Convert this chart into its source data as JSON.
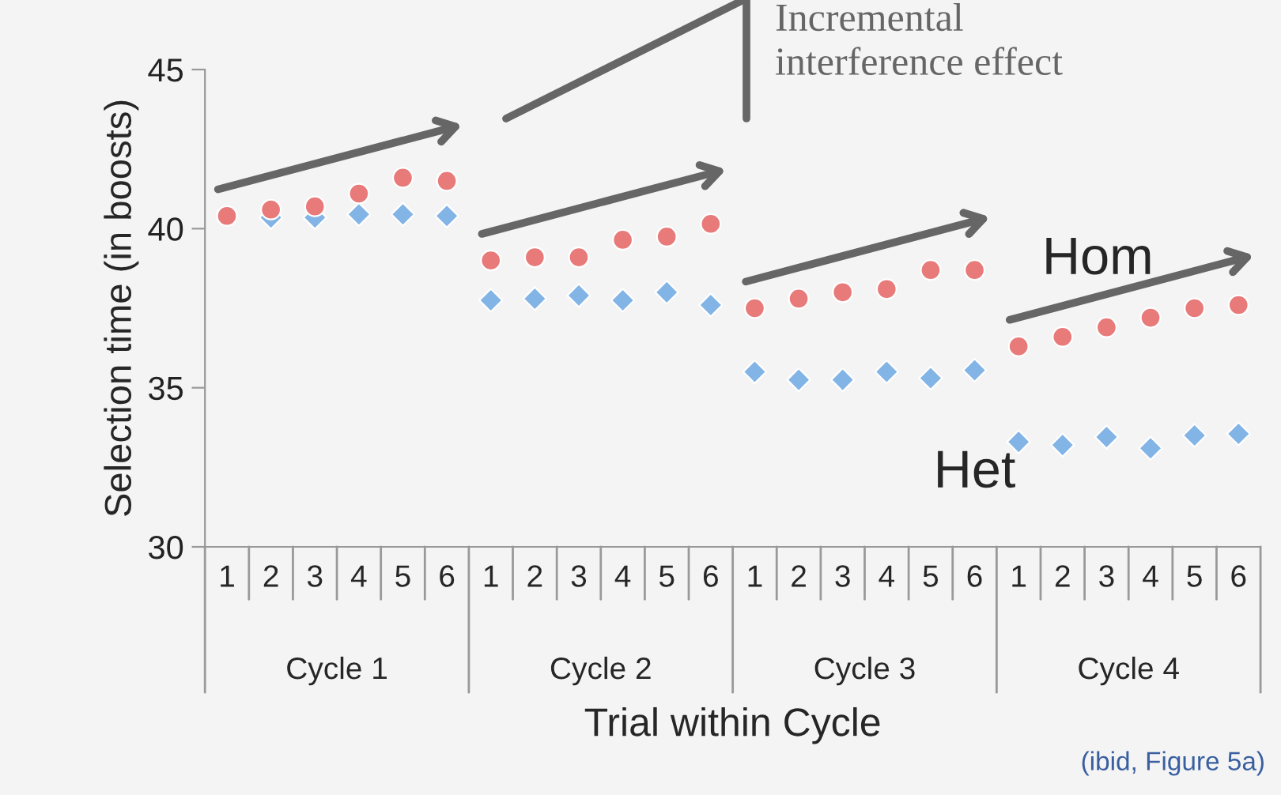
{
  "chart_data": {
    "type": "scatter",
    "title": null,
    "xlabel": "Trial within Cycle",
    "ylabel": "Selection time (in boosts)",
    "categories": [
      "1",
      "2",
      "3",
      "4",
      "5",
      "6",
      "1",
      "2",
      "3",
      "4",
      "5",
      "6",
      "1",
      "2",
      "3",
      "4",
      "5",
      "6",
      "1",
      "2",
      "3",
      "4",
      "5",
      "6"
    ],
    "series": [
      {
        "name": "Hom",
        "color": "#e87a7a",
        "marker": "circle",
        "values": [
          40.4,
          40.6,
          40.7,
          41.1,
          41.6,
          41.5,
          39.0,
          39.1,
          39.1,
          39.65,
          39.75,
          40.15,
          37.5,
          37.8,
          38.0,
          38.1,
          38.7,
          38.7,
          36.3,
          36.6,
          36.9,
          37.2,
          37.5,
          37.6
        ]
      },
      {
        "name": "Het",
        "color": "#82b4e6",
        "marker": "diamond",
        "values": [
          null,
          40.35,
          40.35,
          40.45,
          40.45,
          40.4,
          37.75,
          37.8,
          37.9,
          37.75,
          38.0,
          37.6,
          35.5,
          35.25,
          35.25,
          35.5,
          35.3,
          35.55,
          33.3,
          33.2,
          33.45,
          33.1,
          33.5,
          33.55
        ]
      }
    ],
    "ylim": [
      30,
      45
    ],
    "yticks": [
      30,
      35,
      40,
      45
    ],
    "grid": false,
    "legend": false,
    "annotations": [
      "Incremental\ninterference effect",
      "Cycle 1",
      "Cycle 2",
      "Cycle 3",
      "Cycle 4",
      "(ibid, Figure 5a)"
    ]
  }
}
